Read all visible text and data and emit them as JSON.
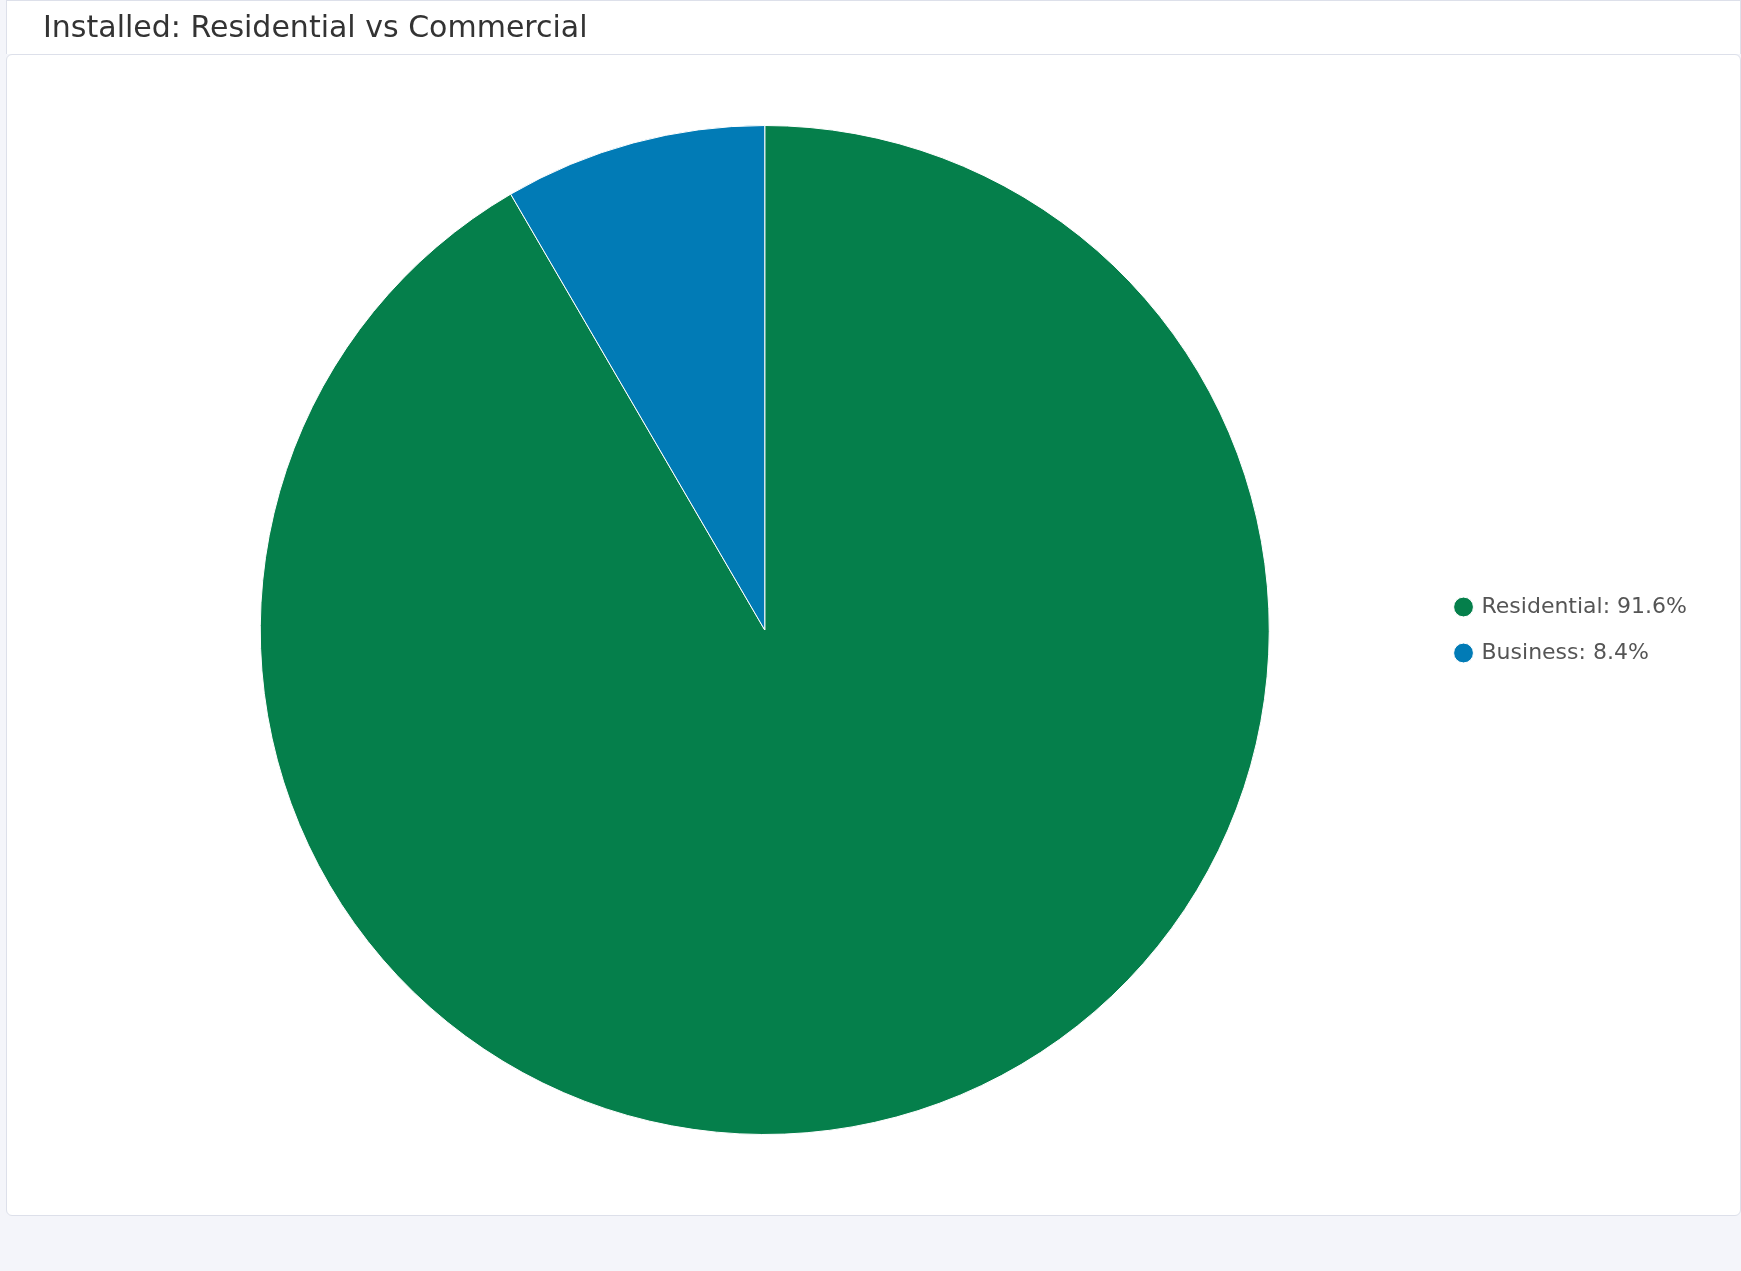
{
  "chart_data": {
    "type": "pie",
    "title": "Installed: Residential vs Commercial",
    "categories": [
      "Residential",
      "Business"
    ],
    "values": [
      91.6,
      8.4
    ],
    "value_labels": [
      "91.6%",
      "8.4%"
    ],
    "colors": [
      "#057f4b",
      "#017bb6"
    ],
    "legend": "right"
  }
}
